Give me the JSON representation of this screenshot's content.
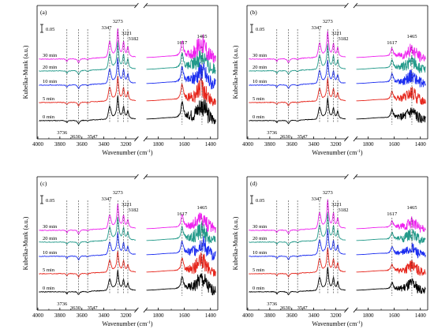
{
  "figure": {
    "ylabel": "Kubelka-Munk  (a.u.)",
    "xlabel": "Wavenumber (cm",
    "xlabel_sup": "-1",
    "xlabel_end": ")",
    "scale_bar_label": "0.05",
    "colors": {
      "0 min": "#000000",
      "5 min": "#e6261c",
      "10 min": "#1c2ef0",
      "20 min": "#239a8a",
      "30 min": "#ee22ee"
    }
  },
  "chart_data": [
    {
      "panel": "(a)",
      "type": "line",
      "x_ticks_left": [
        "4000",
        "3800",
        "3600",
        "3400",
        "3200"
      ],
      "x_ticks_right": [
        "1800",
        "1600",
        "1400"
      ],
      "series": [
        {
          "name": "0 min"
        },
        {
          "name": "5 min"
        },
        {
          "name": "10 min"
        },
        {
          "name": "20 min"
        },
        {
          "name": "30 min"
        }
      ],
      "peak_labels": [
        "3347",
        "3273",
        "3221",
        "3182",
        "1617",
        "1465",
        "3736",
        "3630",
        "3547"
      ],
      "peak_positions": [
        3347,
        3273,
        3221,
        3182,
        1617,
        1465,
        3736,
        3630,
        3547
      ],
      "intensity": 1.0,
      "right_intensity": 1.0
    },
    {
      "panel": "(b)",
      "type": "line",
      "x_ticks_left": [
        "4000",
        "3800",
        "3600",
        "3400",
        "3200"
      ],
      "x_ticks_right": [
        "1800",
        "1600",
        "1400"
      ],
      "series": [
        {
          "name": "0 min"
        },
        {
          "name": "5 min"
        },
        {
          "name": "10 min"
        },
        {
          "name": "20 min"
        },
        {
          "name": "30 min"
        }
      ],
      "peak_labels": [
        "3347",
        "3273",
        "3221",
        "3182",
        "1617",
        "1465",
        "3736",
        "3630",
        "3547"
      ],
      "peak_positions": [
        3347,
        3273,
        3221,
        3182,
        1617,
        1465,
        3736,
        3630,
        3547
      ],
      "intensity": 0.9,
      "right_intensity": 0.55
    },
    {
      "panel": "(c)",
      "type": "line",
      "x_ticks_left": [
        "4000",
        "3800",
        "3600",
        "3400",
        "3200"
      ],
      "x_ticks_right": [
        "1800",
        "1600",
        "1400"
      ],
      "series": [
        {
          "name": "0 min"
        },
        {
          "name": "5 min"
        },
        {
          "name": "10 min"
        },
        {
          "name": "20 min"
        },
        {
          "name": "30 min"
        }
      ],
      "peak_labels": [
        "3347",
        "3273",
        "3221",
        "3182",
        "1617",
        "1465",
        "3736",
        "3630",
        "3547"
      ],
      "peak_positions": [
        3347,
        3273,
        3221,
        3182,
        1617,
        1465,
        3736,
        3630,
        3547
      ],
      "intensity": 0.85,
      "right_intensity": 0.8
    },
    {
      "panel": "(d)",
      "type": "line",
      "x_ticks_left": [
        "4000",
        "3800",
        "3600",
        "3400",
        "3200"
      ],
      "x_ticks_right": [
        "1800",
        "1600",
        "1400"
      ],
      "series": [
        {
          "name": "0 min"
        },
        {
          "name": "5 min"
        },
        {
          "name": "10 min"
        },
        {
          "name": "20 min"
        },
        {
          "name": "30 min"
        }
      ],
      "peak_labels": [
        "3347",
        "3273",
        "3221",
        "3182",
        "1617",
        "1465",
        "3736",
        "3630",
        "3547"
      ],
      "peak_positions": [
        3347,
        3273,
        3221,
        3182,
        1617,
        1465,
        3736,
        3630,
        3547
      ],
      "intensity": 1.0,
      "right_intensity": 0.45
    }
  ]
}
